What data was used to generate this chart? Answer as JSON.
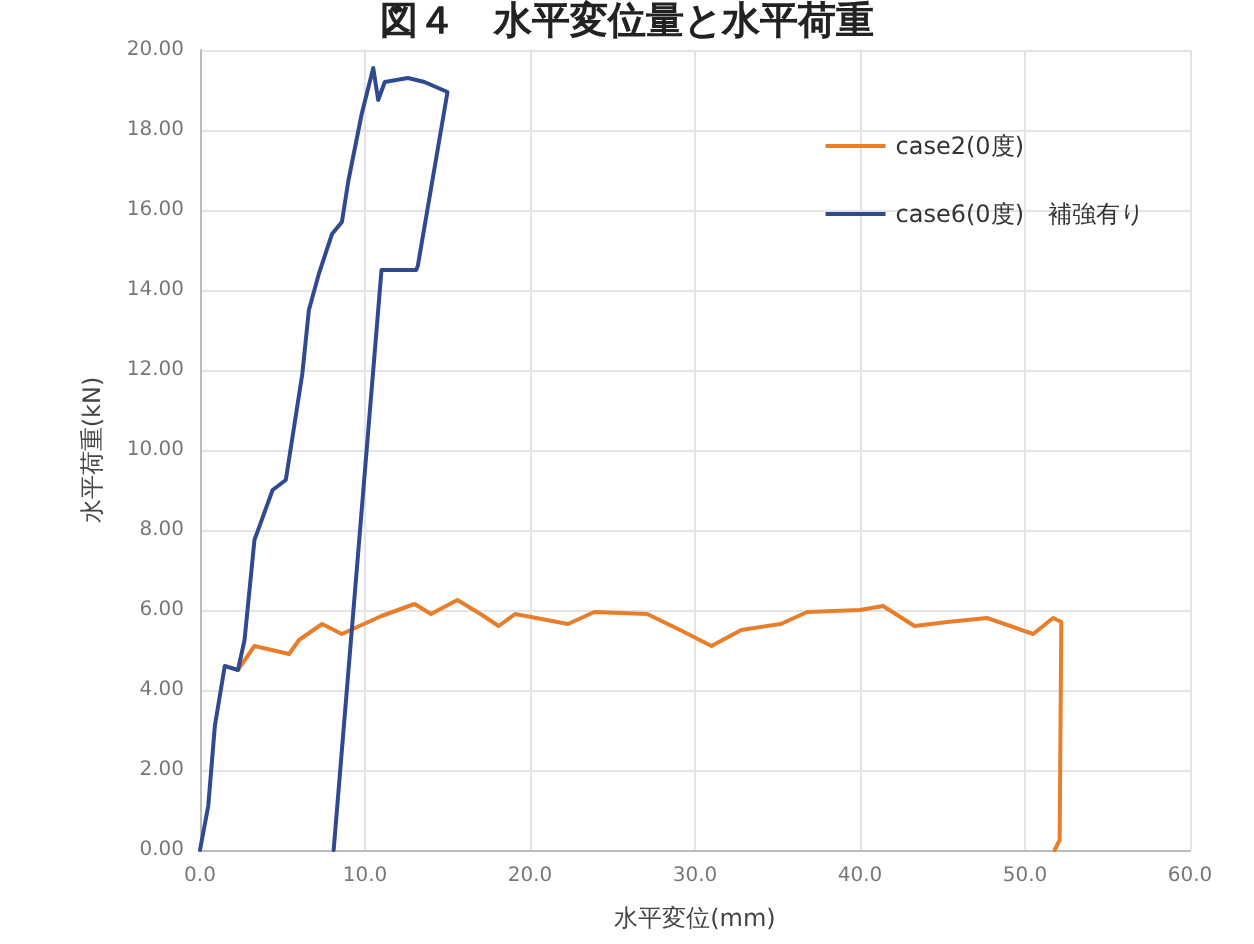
{
  "chart_data": {
    "type": "line",
    "title": "図４　水平変位量と水平荷重",
    "xlabel": "水平変位(mm)",
    "ylabel": "水平荷重(kN)",
    "xlim": [
      0,
      60
    ],
    "xticks": [
      {
        "value": 0,
        "label": "0.0"
      },
      {
        "value": 10,
        "label": "10.0"
      },
      {
        "value": 20,
        "label": "20.0"
      },
      {
        "value": 30,
        "label": "30.0"
      },
      {
        "value": 40,
        "label": "40.0"
      },
      {
        "value": 50,
        "label": "50.0"
      },
      {
        "value": 60,
        "label": "60.0"
      }
    ],
    "ylim": [
      0,
      20
    ],
    "yticks": [
      {
        "value": 0,
        "label": "0.00"
      },
      {
        "value": 2,
        "label": "2.00"
      },
      {
        "value": 4,
        "label": "4.00"
      },
      {
        "value": 6,
        "label": "6.00"
      },
      {
        "value": 8,
        "label": "8.00"
      },
      {
        "value": 10,
        "label": "10.00"
      },
      {
        "value": 12,
        "label": "12.00"
      },
      {
        "value": 14,
        "label": "14.00"
      },
      {
        "value": 16,
        "label": "16.00"
      },
      {
        "value": 18,
        "label": "18.00"
      },
      {
        "value": 20,
        "label": "20.00"
      }
    ],
    "grid": true,
    "legend": "top right",
    "marker": "none",
    "line_style": "solid",
    "series": [
      {
        "name": "case2(0度)",
        "color": "#e87d2a",
        "x": [
          2.3,
          3.3,
          5.4,
          6.0,
          7.4,
          8.6,
          11.0,
          13.0,
          14.0,
          15.6,
          17.0,
          18.1,
          19.1,
          22.3,
          23.9,
          27.1,
          29.1,
          31.0,
          32.8,
          35.2,
          36.8,
          40.0,
          41.4,
          43.3,
          45.3,
          47.7,
          50.5,
          51.7,
          52.2,
          52.1,
          51.8
        ],
        "values": [
          4.5,
          5.1,
          4.9,
          5.25,
          5.65,
          5.4,
          5.85,
          6.15,
          5.9,
          6.25,
          5.9,
          5.6,
          5.9,
          5.65,
          5.95,
          5.9,
          5.5,
          5.1,
          5.5,
          5.65,
          5.95,
          6.0,
          6.1,
          5.6,
          5.7,
          5.8,
          5.4,
          5.8,
          5.7,
          0.25,
          0
        ]
      },
      {
        "name": "case6(0度)　補強有り",
        "color": "#2f4a8f",
        "x": [
          0,
          0.5,
          0.9,
          1.5,
          2.3,
          2.7,
          3.3,
          4.4,
          5.2,
          6.2,
          6.6,
          7.2,
          8.0,
          8.6,
          9.0,
          9.8,
          10.5,
          10.8,
          11.2,
          12.6,
          13.6,
          15.0,
          13.2,
          13.1,
          11.0,
          8.1
        ],
        "values": [
          0,
          1.1,
          3.1,
          4.6,
          4.5,
          5.25,
          7.75,
          9.0,
          9.25,
          11.9,
          13.5,
          14.4,
          15.4,
          15.7,
          16.75,
          18.4,
          19.55,
          18.75,
          19.2,
          19.3,
          19.2,
          18.95,
          14.6,
          14.5,
          14.5,
          0
        ]
      }
    ]
  }
}
